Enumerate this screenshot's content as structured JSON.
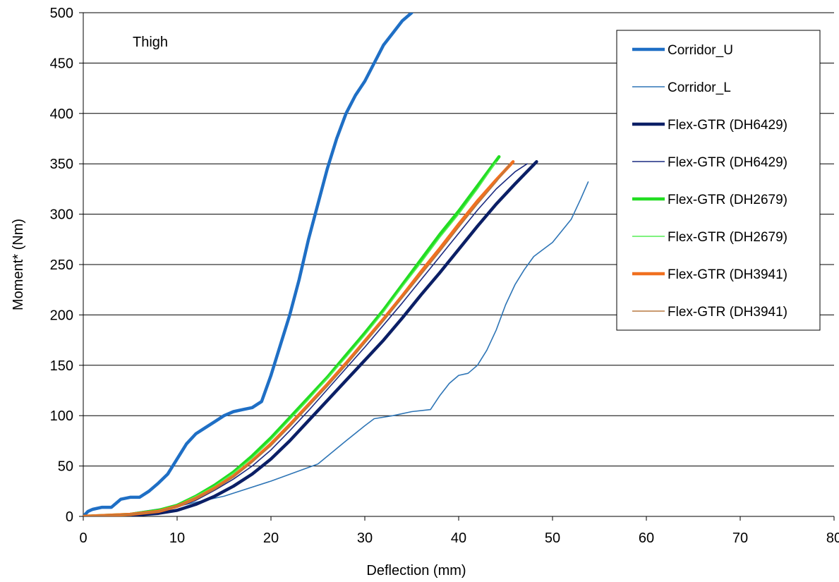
{
  "chart_data": {
    "type": "line",
    "title": "",
    "annotation": "Thigh",
    "xlabel": "Deflection (mm)",
    "ylabel": "Moment* (Nm)",
    "xlim": [
      0,
      80
    ],
    "ylim": [
      0,
      500
    ],
    "xticks": [
      0,
      10,
      20,
      30,
      40,
      50,
      60,
      70,
      80
    ],
    "xtick_labels": [
      "0",
      "10",
      "20",
      "30",
      "40",
      "50",
      "60",
      "70",
      "80"
    ],
    "yticks": [
      0,
      50,
      100,
      150,
      200,
      250,
      300,
      350,
      400,
      450,
      500
    ],
    "ytick_labels": [
      "0",
      "50",
      "100",
      "150",
      "200",
      "250",
      "300",
      "350",
      "400",
      "450",
      "500"
    ],
    "grid": "horizontal",
    "legend_position": "top-right",
    "series": [
      {
        "name": "Corridor_U",
        "color": "#1f6fc5",
        "width": "thick",
        "points": [
          [
            0,
            0
          ],
          [
            0.5,
            5
          ],
          [
            1,
            7
          ],
          [
            2,
            9
          ],
          [
            3,
            9
          ],
          [
            4,
            17
          ],
          [
            5,
            19
          ],
          [
            6,
            19
          ],
          [
            7,
            25
          ],
          [
            8,
            33
          ],
          [
            9,
            42
          ],
          [
            10,
            57
          ],
          [
            11,
            72
          ],
          [
            12,
            82
          ],
          [
            13,
            88
          ],
          [
            14,
            94
          ],
          [
            15,
            100
          ],
          [
            16,
            104
          ],
          [
            17,
            106
          ],
          [
            18,
            108
          ],
          [
            19,
            114
          ],
          [
            20,
            140
          ],
          [
            21,
            170
          ],
          [
            22,
            200
          ],
          [
            23,
            235
          ],
          [
            24,
            275
          ],
          [
            25,
            310
          ],
          [
            26,
            345
          ],
          [
            27,
            375
          ],
          [
            28,
            400
          ],
          [
            29,
            418
          ],
          [
            30,
            432
          ],
          [
            31,
            450
          ],
          [
            32,
            468
          ],
          [
            33,
            480
          ],
          [
            34,
            492
          ],
          [
            35,
            500
          ]
        ]
      },
      {
        "name": "Corridor_L",
        "color": "#2e75b6",
        "width": "thin",
        "points": [
          [
            0,
            0
          ],
          [
            5,
            3
          ],
          [
            10,
            10
          ],
          [
            15,
            20
          ],
          [
            20,
            35
          ],
          [
            25,
            52
          ],
          [
            28,
            75
          ],
          [
            30,
            90
          ],
          [
            31,
            97
          ],
          [
            33,
            100
          ],
          [
            35,
            104
          ],
          [
            37,
            106
          ],
          [
            38,
            120
          ],
          [
            39,
            132
          ],
          [
            40,
            140
          ],
          [
            41,
            142
          ],
          [
            42,
            150
          ],
          [
            43,
            165
          ],
          [
            44,
            185
          ],
          [
            45,
            210
          ],
          [
            46,
            230
          ],
          [
            47,
            245
          ],
          [
            48,
            258
          ],
          [
            50,
            272
          ],
          [
            52,
            295
          ],
          [
            53,
            315
          ],
          [
            53.8,
            332
          ]
        ]
      },
      {
        "name": "Flex-GTR (DH6429)",
        "color": "#0b1f66",
        "width": "thick",
        "points": [
          [
            0,
            0
          ],
          [
            5,
            1
          ],
          [
            8,
            3
          ],
          [
            10,
            6
          ],
          [
            12,
            12
          ],
          [
            14,
            20
          ],
          [
            16,
            30
          ],
          [
            18,
            42
          ],
          [
            20,
            57
          ],
          [
            22,
            75
          ],
          [
            24,
            95
          ],
          [
            26,
            115
          ],
          [
            28,
            135
          ],
          [
            30,
            155
          ],
          [
            32,
            175
          ],
          [
            34,
            197
          ],
          [
            36,
            220
          ],
          [
            38,
            242
          ],
          [
            40,
            265
          ],
          [
            42,
            288
          ],
          [
            44,
            310
          ],
          [
            46,
            330
          ],
          [
            48.3,
            352
          ]
        ]
      },
      {
        "name": "Flex-GTR (DH6429)",
        "color": "#1a2a80",
        "width": "thin",
        "points": [
          [
            0,
            0
          ],
          [
            5,
            2
          ],
          [
            8,
            5
          ],
          [
            10,
            9
          ],
          [
            12,
            16
          ],
          [
            14,
            26
          ],
          [
            16,
            37
          ],
          [
            18,
            50
          ],
          [
            20,
            66
          ],
          [
            22,
            85
          ],
          [
            24,
            105
          ],
          [
            26,
            126
          ],
          [
            28,
            147
          ],
          [
            30,
            168
          ],
          [
            32,
            190
          ],
          [
            34,
            212
          ],
          [
            36,
            235
          ],
          [
            38,
            258
          ],
          [
            40,
            281
          ],
          [
            42,
            304
          ],
          [
            44,
            325
          ],
          [
            46,
            342
          ],
          [
            47.3,
            350
          ]
        ]
      },
      {
        "name": "Flex-GTR (DH2679)",
        "color": "#22dd22",
        "width": "thick",
        "points": [
          [
            0,
            0
          ],
          [
            5,
            2
          ],
          [
            8,
            6
          ],
          [
            10,
            11
          ],
          [
            12,
            20
          ],
          [
            14,
            31
          ],
          [
            16,
            44
          ],
          [
            18,
            60
          ],
          [
            20,
            78
          ],
          [
            22,
            98
          ],
          [
            24,
            118
          ],
          [
            26,
            138
          ],
          [
            28,
            160
          ],
          [
            30,
            182
          ],
          [
            32,
            205
          ],
          [
            34,
            230
          ],
          [
            36,
            255
          ],
          [
            38,
            280
          ],
          [
            40,
            303
          ],
          [
            42,
            328
          ],
          [
            44.3,
            357
          ]
        ]
      },
      {
        "name": "Flex-GTR (DH2679)",
        "color": "#55ee55",
        "width": "thin",
        "points": [
          [
            0,
            0
          ],
          [
            5,
            2
          ],
          [
            8,
            6
          ],
          [
            10,
            11
          ],
          [
            12,
            20
          ],
          [
            14,
            30
          ],
          [
            16,
            43
          ],
          [
            18,
            58
          ],
          [
            20,
            76
          ],
          [
            22,
            96
          ],
          [
            24,
            116
          ],
          [
            26,
            137
          ],
          [
            28,
            158
          ],
          [
            30,
            180
          ],
          [
            32,
            203
          ],
          [
            34,
            228
          ],
          [
            36,
            252
          ],
          [
            38,
            277
          ],
          [
            40,
            300
          ],
          [
            42,
            325
          ],
          [
            44,
            352
          ]
        ]
      },
      {
        "name": "Flex-GTR (DH3941)",
        "color": "#f07020",
        "width": "thick",
        "points": [
          [
            0,
            0
          ],
          [
            5,
            2
          ],
          [
            8,
            5
          ],
          [
            10,
            10
          ],
          [
            12,
            18
          ],
          [
            14,
            28
          ],
          [
            16,
            40
          ],
          [
            18,
            55
          ],
          [
            20,
            72
          ],
          [
            22,
            91
          ],
          [
            24,
            111
          ],
          [
            26,
            131
          ],
          [
            28,
            152
          ],
          [
            30,
            174
          ],
          [
            32,
            196
          ],
          [
            34,
            219
          ],
          [
            36,
            243
          ],
          [
            38,
            266
          ],
          [
            40,
            290
          ],
          [
            42,
            313
          ],
          [
            44,
            334
          ],
          [
            45.8,
            352
          ]
        ]
      },
      {
        "name": "Flex-GTR (DH3941)",
        "color": "#b87840",
        "width": "thin",
        "points": [
          [
            0,
            0
          ],
          [
            5,
            2
          ],
          [
            8,
            5
          ],
          [
            10,
            10
          ],
          [
            12,
            18
          ],
          [
            14,
            27
          ],
          [
            16,
            39
          ],
          [
            18,
            54
          ],
          [
            20,
            70
          ],
          [
            22,
            89
          ],
          [
            24,
            109
          ],
          [
            26,
            129
          ],
          [
            28,
            150
          ],
          [
            30,
            172
          ],
          [
            32,
            194
          ],
          [
            34,
            217
          ],
          [
            36,
            240
          ],
          [
            38,
            263
          ],
          [
            40,
            287
          ],
          [
            42,
            310
          ],
          [
            44,
            332
          ],
          [
            45.5,
            350
          ]
        ]
      }
    ]
  }
}
